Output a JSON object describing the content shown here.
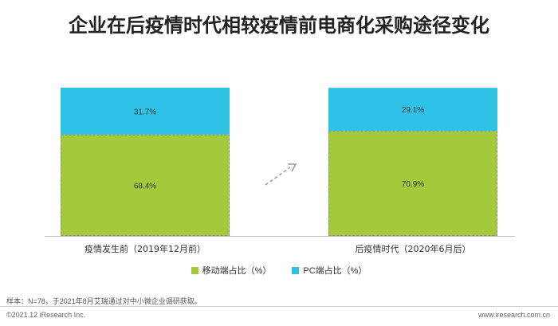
{
  "title": "企业在后疫情时代相较疫情前电商化采购途径变化",
  "chart_data": {
    "type": "bar",
    "stacked": true,
    "categories": [
      "疫情发生前（2019年12月前）",
      "后疫情时代（2020年6月后）"
    ],
    "series": [
      {
        "name": "移动端占比（%）",
        "values": [
          68.4,
          70.9
        ],
        "labels": [
          "68.4%",
          "70.9%"
        ],
        "color": "#A4C93A"
      },
      {
        "name": "PC端占比（%）",
        "values": [
          31.7,
          29.1
        ],
        "labels": [
          "31.7%",
          "29.1%"
        ],
        "color": "#2EC3E6"
      }
    ],
    "ylim": [
      0,
      100.1
    ],
    "grid": false,
    "legend_position": "bottom"
  },
  "legend": {
    "mobile": {
      "label": "移动端占比（%）",
      "color": "#A4C93A"
    },
    "pc": {
      "label": "PC端占比（%）",
      "color": "#2EC3E6"
    }
  },
  "footer": {
    "note": "样本：N=78，于2021年8月艾瑞通过对中小微企业调研获取。",
    "copyright": "©2021.12 iResearch Inc.",
    "url": "www.iresearch.com.cn"
  }
}
